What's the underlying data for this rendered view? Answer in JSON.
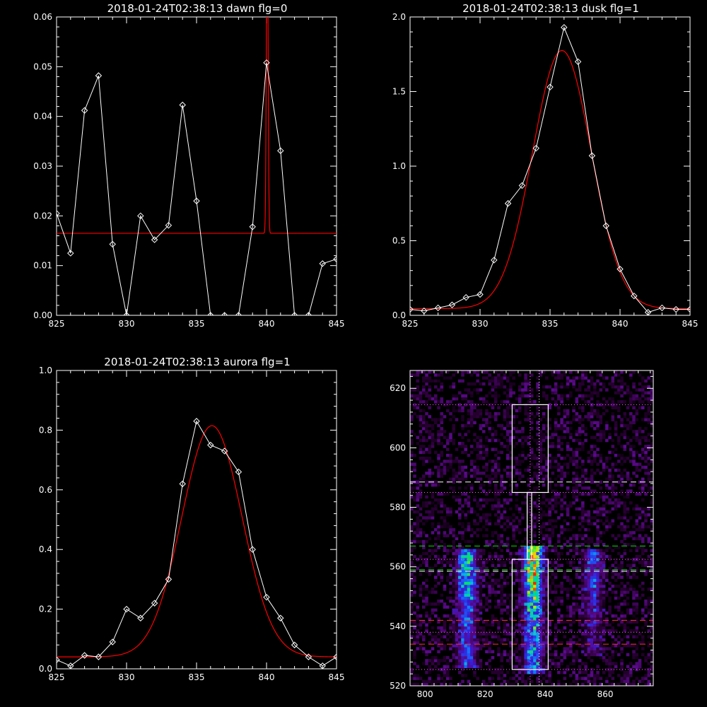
{
  "chart_data": [
    {
      "id": "dawn",
      "type": "line",
      "title": "2018-01-24T02:38:13 dawn flg=0",
      "xlim": [
        825,
        845
      ],
      "ylim": [
        0,
        0.06
      ],
      "xticks": [
        825,
        830,
        835,
        840,
        845
      ],
      "xtick_labels": [
        "825",
        "830",
        "835",
        "840",
        "845"
      ],
      "yticks": [
        0,
        0.01,
        0.02,
        0.03,
        0.04,
        0.05,
        0.06
      ],
      "ytick_labels": [
        "0.00",
        "0.01",
        "0.02",
        "0.03",
        "0.04",
        "0.05",
        "0.06"
      ],
      "series": [
        {
          "kind": "data",
          "color": "#ffffff",
          "x": [
            825,
            826,
            827,
            828,
            829,
            830,
            831,
            832,
            833,
            834,
            835,
            836,
            837,
            838,
            839,
            840,
            841,
            842,
            843,
            844,
            845
          ],
          "y": [
            0.0205,
            0.0125,
            0.0412,
            0.0482,
            0.0143,
            0.0,
            0.02,
            0.0152,
            0.0181,
            0.0423,
            0.023,
            0.0,
            0.0,
            0.0,
            0.0178,
            0.0508,
            0.0331,
            0.0,
            0.0,
            0.0104,
            0.0113
          ]
        },
        {
          "kind": "fit",
          "color": "#ff0000",
          "model": "gaussian",
          "baseline": 0.0165,
          "amplitude": 0.07,
          "center": 840.05,
          "sigma": 0.06
        }
      ]
    },
    {
      "id": "dusk",
      "type": "line",
      "title": "2018-01-24T02:38:13 dusk flg=1",
      "xlim": [
        825,
        845
      ],
      "ylim": [
        0,
        2.0
      ],
      "xticks": [
        825,
        830,
        835,
        840,
        845
      ],
      "xtick_labels": [
        "825",
        "830",
        "835",
        "840",
        "845"
      ],
      "yticks": [
        0,
        0.5,
        1.0,
        1.5,
        2.0
      ],
      "ytick_labels": [
        "0.0",
        "0.5",
        "1.0",
        "1.5",
        "2.0"
      ],
      "series": [
        {
          "kind": "data",
          "color": "#ffffff",
          "x": [
            825,
            826,
            827,
            828,
            829,
            830,
            831,
            832,
            833,
            834,
            835,
            836,
            837,
            838,
            839,
            840,
            841,
            842,
            843,
            844,
            845
          ],
          "y": [
            0.04,
            0.03,
            0.05,
            0.07,
            0.12,
            0.14,
            0.37,
            0.75,
            0.87,
            1.12,
            1.53,
            1.93,
            1.7,
            1.07,
            0.6,
            0.31,
            0.13,
            0.02,
            0.05,
            0.04,
            0.04
          ]
        },
        {
          "kind": "fit",
          "color": "#ff0000",
          "model": "gaussian",
          "baseline": 0.045,
          "amplitude": 1.73,
          "center": 835.85,
          "sigma": 2.1
        }
      ]
    },
    {
      "id": "aurora",
      "type": "line",
      "title": "2018-01-24T02:38:13 aurora flg=1",
      "xlim": [
        825,
        845
      ],
      "ylim": [
        0,
        1.0
      ],
      "xticks": [
        825,
        830,
        835,
        840,
        845
      ],
      "xtick_labels": [
        "825",
        "830",
        "835",
        "840",
        "845"
      ],
      "yticks": [
        0,
        0.2,
        0.4,
        0.6,
        0.8,
        1.0
      ],
      "ytick_labels": [
        "0.0",
        "0.2",
        "0.4",
        "0.6",
        "0.8",
        "1.0"
      ],
      "series": [
        {
          "kind": "data",
          "color": "#ffffff",
          "x": [
            825,
            826,
            827,
            828,
            829,
            830,
            831,
            832,
            833,
            834,
            835,
            836,
            837,
            838,
            839,
            840,
            841,
            842,
            843,
            844,
            845
          ],
          "y": [
            0.03,
            0.01,
            0.045,
            0.04,
            0.09,
            0.2,
            0.17,
            0.22,
            0.3,
            0.62,
            0.83,
            0.75,
            0.73,
            0.66,
            0.4,
            0.24,
            0.17,
            0.08,
            0.04,
            0.01,
            0.04
          ]
        },
        {
          "kind": "fit",
          "color": "#ff0000",
          "model": "gaussian",
          "baseline": 0.04,
          "amplitude": 0.775,
          "center": 836.1,
          "sigma": 2.15
        }
      ]
    },
    {
      "id": "image",
      "type": "heatmap",
      "title": "",
      "xlim": [
        795,
        876
      ],
      "ylim": [
        520,
        626
      ],
      "xticks": [
        800,
        820,
        840,
        860
      ],
      "xtick_labels": [
        "800",
        "820",
        "840",
        "860"
      ],
      "yticks": [
        520,
        540,
        560,
        580,
        600,
        620
      ],
      "ytick_labels": [
        "520",
        "540",
        "560",
        "580",
        "600",
        "620"
      ],
      "colormap": [
        "#000000",
        "#2a0035",
        "#5a0a8a",
        "#3a18d0",
        "#1a60ff",
        "#00c8d8",
        "#00e070",
        "#a8f000",
        "#ffd000",
        "#ff2000"
      ],
      "emission_columns": [
        {
          "x_center": 814,
          "x_width": 3.2,
          "y_from": 526,
          "y_to": 566,
          "peak_y": 561,
          "strength": 0.7
        },
        {
          "x_center": 836,
          "x_width": 3.0,
          "y_from": 524,
          "y_to": 567,
          "peak_y": 560,
          "strength": 1.0
        },
        {
          "x_center": 856,
          "x_width": 3.2,
          "y_from": 530,
          "y_to": 566,
          "peak_y": 560,
          "strength": 0.38
        }
      ],
      "boxes": [
        {
          "x0": 829,
          "x1": 841,
          "y0": 525.5,
          "y1": 562.5,
          "color": "#ffffff"
        },
        {
          "x0": 829,
          "x1": 841,
          "y0": 585,
          "y1": 614.5,
          "color": "#ffffff"
        },
        {
          "x0": 834,
          "x1": 835.5,
          "y0": 562.5,
          "y1": 585,
          "color": "#ffffff"
        }
      ],
      "hlines": [
        {
          "y": 614.5,
          "color": "#ff60ff",
          "style": "dotted"
        },
        {
          "y": 588.5,
          "color": "#ffffff",
          "style": "dashed"
        },
        {
          "y": 585,
          "color": "#ff60ff",
          "style": "dotted"
        },
        {
          "y": 567,
          "color": "#00e000",
          "style": "dashed"
        },
        {
          "y": 562.5,
          "color": "#ff60ff",
          "style": "dotted"
        },
        {
          "y": 559,
          "color": "#00e000",
          "style": "dashed"
        },
        {
          "y": 558.5,
          "color": "#ffffff",
          "style": "dashed"
        },
        {
          "y": 542,
          "color": "#ff3030",
          "style": "dashed"
        },
        {
          "y": 538,
          "color": "#ff60ff",
          "style": "dotted"
        },
        {
          "y": 534,
          "color": "#ff3030",
          "style": "dashed"
        },
        {
          "y": 525.5,
          "color": "#ff60ff",
          "style": "dotted"
        }
      ],
      "vlines": [
        {
          "x": 835,
          "color": "#ff60ff",
          "style": "dotted"
        },
        {
          "x": 838,
          "color": "#ffffff",
          "style": "dotted"
        }
      ]
    }
  ]
}
